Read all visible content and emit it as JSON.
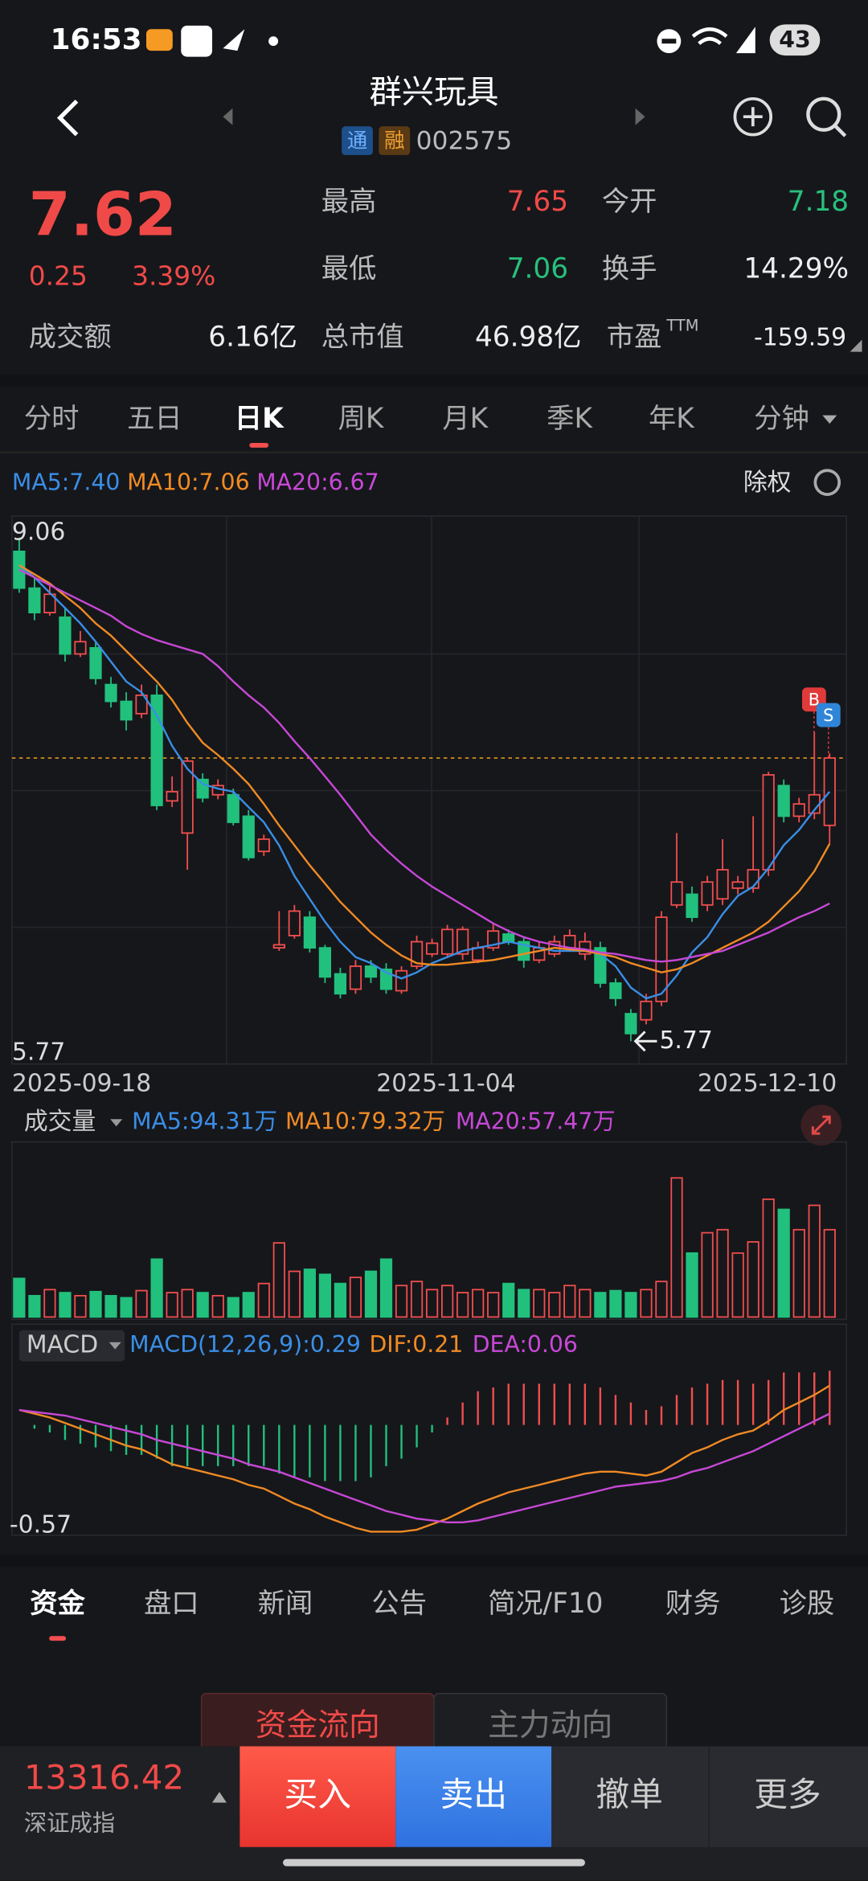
{
  "status_bar": {
    "time": "16:53",
    "battery": "43"
  },
  "header": {
    "name": "群兴玩具",
    "tags": [
      "通",
      "融"
    ],
    "code": "002575"
  },
  "quote": {
    "price": 7.62,
    "change": 0.25,
    "change_pct": "3.39%",
    "stats": [
      {
        "label": "最高",
        "value": 7.65
      },
      {
        "label": "今开",
        "value": 7.18
      },
      {
        "label": "最低",
        "value": 7.06
      },
      {
        "label": "换手",
        "value": "14.29%"
      },
      {
        "label": "成交额",
        "value": "6.16亿"
      },
      {
        "label": "总市值",
        "value": "46.98亿"
      },
      {
        "label": "市盈",
        "sup": "TTM",
        "value": -159.59
      }
    ]
  },
  "tabs": {
    "items": [
      "分时",
      "五日",
      "日K",
      "周K",
      "月K",
      "季K",
      "年K",
      "分钟"
    ],
    "active": 2
  },
  "kline": {
    "ma_legend": [
      "MA5:7.40",
      "MA10:7.06",
      "MA20:6.67"
    ],
    "adjust": "除权",
    "ylim": [
      5.77,
      9.06
    ],
    "x_labels": [
      "2025-09-18",
      "2025-11-04",
      "2025-12-10"
    ],
    "trade_marks": [
      "B",
      "S"
    ],
    "open": [
      8.97,
      8.73,
      8.57,
      8.54,
      8.3,
      8.34,
      8.1,
      7.99,
      7.91,
      8.03,
      7.34,
      7.13,
      7.48,
      7.38,
      7.38,
      7.24,
      7.01,
      6.38,
      6.46,
      6.58,
      6.38,
      6.21,
      6.11,
      6.26,
      6.24,
      6.1,
      6.26,
      6.34,
      6.34,
      6.34,
      6.3,
      6.38,
      6.47,
      6.42,
      6.3,
      6.34,
      6.38,
      6.34,
      6.38,
      6.15,
      5.95,
      5.91,
      6.03,
      6.66,
      6.73,
      6.66,
      6.7,
      6.77,
      6.77,
      6.89,
      7.44,
      7.24,
      7.26,
      7.18
    ],
    "high": [
      9.06,
      8.8,
      8.75,
      8.6,
      8.45,
      8.38,
      8.15,
      8.05,
      8.1,
      8.1,
      7.5,
      7.62,
      7.52,
      7.48,
      7.42,
      7.28,
      7.12,
      6.62,
      6.66,
      6.62,
      6.4,
      6.25,
      6.3,
      6.3,
      6.28,
      6.26,
      6.46,
      6.44,
      6.53,
      6.52,
      6.42,
      6.54,
      6.5,
      6.45,
      6.42,
      6.46,
      6.5,
      6.48,
      6.42,
      6.18,
      5.98,
      6.08,
      6.62,
      7.13,
      6.78,
      6.85,
      7.09,
      6.85,
      7.24,
      7.53,
      7.48,
      7.36,
      7.79,
      7.65
    ],
    "low": [
      8.7,
      8.52,
      8.55,
      8.25,
      8.28,
      8.1,
      7.95,
      7.8,
      7.88,
      7.28,
      7.3,
      6.89,
      7.33,
      7.35,
      7.18,
      6.95,
      6.98,
      6.36,
      6.44,
      6.35,
      6.15,
      6.05,
      6.08,
      6.15,
      6.08,
      6.08,
      6.24,
      6.32,
      6.32,
      6.3,
      6.28,
      6.36,
      6.4,
      6.25,
      6.28,
      6.32,
      6.36,
      6.3,
      6.12,
      6.0,
      5.77,
      5.88,
      6.0,
      6.64,
      6.55,
      6.62,
      6.66,
      6.73,
      6.74,
      6.85,
      7.2,
      7.2,
      7.22,
      7.06
    ],
    "close": [
      8.73,
      8.57,
      8.69,
      8.3,
      8.38,
      8.14,
      7.99,
      7.87,
      8.03,
      7.31,
      7.4,
      7.6,
      7.36,
      7.44,
      7.2,
      6.97,
      7.09,
      6.4,
      6.62,
      6.38,
      6.19,
      6.08,
      6.26,
      6.19,
      6.11,
      6.23,
      6.42,
      6.41,
      6.5,
      6.5,
      6.38,
      6.49,
      6.42,
      6.3,
      6.38,
      6.42,
      6.46,
      6.42,
      6.15,
      6.05,
      5.82,
      6.03,
      6.58,
      6.81,
      6.58,
      6.81,
      6.89,
      6.81,
      6.89,
      7.51,
      7.24,
      7.32,
      7.38,
      7.62
    ],
    "ma5": [
      8.88,
      8.8,
      8.7,
      8.6,
      8.5,
      8.38,
      8.25,
      8.12,
      8.05,
      7.9,
      7.7,
      7.55,
      7.45,
      7.42,
      7.4,
      7.3,
      7.2,
      7.05,
      6.85,
      6.7,
      6.55,
      6.42,
      6.32,
      6.28,
      6.22,
      6.18,
      6.22,
      6.28,
      6.32,
      6.36,
      6.38,
      6.4,
      6.42,
      6.4,
      6.38,
      6.36,
      6.36,
      6.36,
      6.34,
      6.26,
      6.12,
      6.05,
      6.08,
      6.2,
      6.35,
      6.45,
      6.6,
      6.72,
      6.78,
      6.9,
      7.05,
      7.15,
      7.28,
      7.4
    ],
    "ma10": [
      8.88,
      8.82,
      8.76,
      8.68,
      8.6,
      8.5,
      8.42,
      8.32,
      8.22,
      8.12,
      8.0,
      7.85,
      7.72,
      7.64,
      7.55,
      7.45,
      7.32,
      7.18,
      7.05,
      6.92,
      6.8,
      6.68,
      6.58,
      6.48,
      6.4,
      6.33,
      6.28,
      6.27,
      6.27,
      6.28,
      6.29,
      6.3,
      6.32,
      6.34,
      6.36,
      6.38,
      6.37,
      6.36,
      6.34,
      6.32,
      6.28,
      6.25,
      6.22,
      6.24,
      6.28,
      6.33,
      6.38,
      6.43,
      6.48,
      6.55,
      6.65,
      6.75,
      6.88,
      7.06
    ],
    "ma20": [
      8.85,
      8.8,
      8.75,
      8.7,
      8.65,
      8.6,
      8.55,
      8.48,
      8.43,
      8.39,
      8.36,
      8.33,
      8.3,
      8.22,
      8.12,
      8.03,
      7.95,
      7.85,
      7.73,
      7.62,
      7.5,
      7.38,
      7.25,
      7.12,
      7.02,
      6.93,
      6.85,
      6.78,
      6.72,
      6.66,
      6.6,
      6.54,
      6.49,
      6.45,
      6.42,
      6.4,
      6.38,
      6.37,
      6.35,
      6.34,
      6.32,
      6.3,
      6.29,
      6.3,
      6.32,
      6.34,
      6.36,
      6.4,
      6.44,
      6.48,
      6.53,
      6.58,
      6.62,
      6.67
    ]
  },
  "volume": {
    "label": "成交量",
    "ma_legend": [
      "MA5:94.31万",
      "MA10:79.32万",
      "MA20:57.47万"
    ],
    "values": [
      38,
      21,
      27,
      24,
      21,
      25,
      21,
      19,
      26,
      57,
      24,
      27,
      24,
      21,
      19,
      24,
      33,
      73,
      45,
      47,
      42,
      33,
      39,
      45,
      57,
      31,
      35,
      27,
      31,
      24,
      27,
      24,
      33,
      27,
      27,
      24,
      31,
      27,
      24,
      26,
      24,
      27,
      35,
      137,
      63,
      83,
      86,
      63,
      74,
      116,
      106,
      86,
      110,
      86
    ]
  },
  "macd": {
    "label": "MACD",
    "legend": [
      "MACD(12,26,9):0.29",
      "DIF:0.21",
      "DEA:0.06"
    ],
    "ymin": -0.57,
    "dif": [
      0.08,
      0.06,
      0.04,
      0.01,
      -0.02,
      -0.05,
      -0.08,
      -0.11,
      -0.13,
      -0.17,
      -0.21,
      -0.23,
      -0.25,
      -0.27,
      -0.29,
      -0.32,
      -0.34,
      -0.38,
      -0.42,
      -0.45,
      -0.49,
      -0.52,
      -0.55,
      -0.57,
      -0.57,
      -0.57,
      -0.56,
      -0.53,
      -0.5,
      -0.46,
      -0.42,
      -0.39,
      -0.36,
      -0.34,
      -0.32,
      -0.3,
      -0.28,
      -0.26,
      -0.25,
      -0.25,
      -0.26,
      -0.27,
      -0.25,
      -0.2,
      -0.15,
      -0.12,
      -0.08,
      -0.05,
      -0.03,
      0.02,
      0.08,
      0.12,
      0.16,
      0.21
    ],
    "dea": [
      0.08,
      0.07,
      0.06,
      0.05,
      0.03,
      0.01,
      -0.01,
      -0.03,
      -0.05,
      -0.08,
      -0.1,
      -0.12,
      -0.14,
      -0.16,
      -0.18,
      -0.21,
      -0.23,
      -0.25,
      -0.28,
      -0.31,
      -0.34,
      -0.37,
      -0.4,
      -0.43,
      -0.46,
      -0.48,
      -0.5,
      -0.51,
      -0.52,
      -0.52,
      -0.51,
      -0.49,
      -0.47,
      -0.45,
      -0.43,
      -0.41,
      -0.39,
      -0.37,
      -0.35,
      -0.33,
      -0.32,
      -0.31,
      -0.3,
      -0.28,
      -0.25,
      -0.23,
      -0.2,
      -0.17,
      -0.14,
      -0.1,
      -0.06,
      -0.02,
      0.02,
      0.06
    ],
    "hist": [
      0,
      -0.02,
      -0.04,
      -0.08,
      -0.1,
      -0.12,
      -0.14,
      -0.16,
      -0.16,
      -0.18,
      -0.22,
      -0.22,
      -0.22,
      -0.22,
      -0.22,
      -0.22,
      -0.22,
      -0.26,
      -0.28,
      -0.28,
      -0.3,
      -0.3,
      -0.3,
      -0.28,
      -0.22,
      -0.18,
      -0.12,
      -0.04,
      0.04,
      0.12,
      0.18,
      0.2,
      0.22,
      0.22,
      0.22,
      0.22,
      0.22,
      0.22,
      0.2,
      0.16,
      0.12,
      0.08,
      0.1,
      0.16,
      0.2,
      0.22,
      0.24,
      0.24,
      0.22,
      0.24,
      0.28,
      0.28,
      0.28,
      0.29
    ]
  },
  "bottom_tabs": {
    "items": [
      "资金",
      "盘口",
      "新闻",
      "公告",
      "简况/F10",
      "财务",
      "诊股"
    ],
    "active": 0,
    "sub": [
      "资金流向",
      "主力动向"
    ]
  },
  "footer": {
    "index_value": 13316.42,
    "index_name": "深证成指",
    "buttons": [
      "买入",
      "卖出",
      "撤单",
      "更多"
    ]
  }
}
